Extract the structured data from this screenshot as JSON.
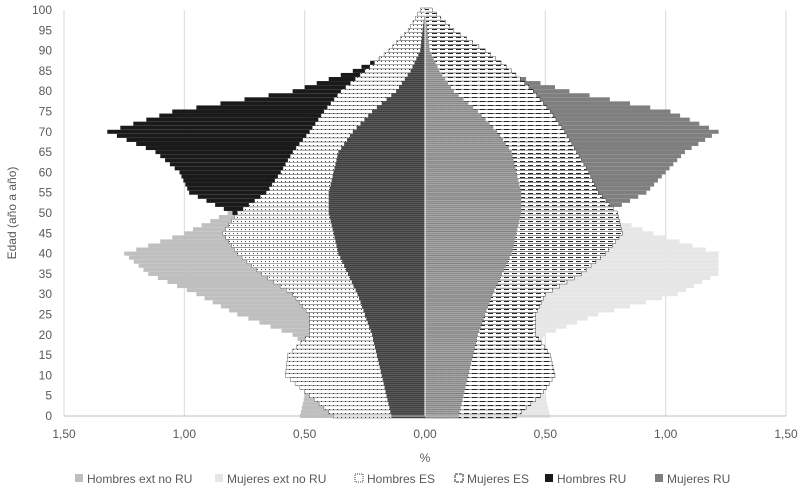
{
  "chart_data": {
    "type": "bar",
    "orientation": "horizontal-population-pyramid",
    "xlabel": "%",
    "ylabel": "Edad (año a año)",
    "xlim": [
      -1.5,
      1.5
    ],
    "ylim": [
      0,
      100
    ],
    "x_ticks": [
      {
        "value": -1.5,
        "label": "1,50"
      },
      {
        "value": -1.0,
        "label": "1,00"
      },
      {
        "value": -0.5,
        "label": "0,50"
      },
      {
        "value": 0.0,
        "label": "0,00"
      },
      {
        "value": 0.5,
        "label": "0,50"
      },
      {
        "value": 1.0,
        "label": "1,00"
      },
      {
        "value": 1.5,
        "label": "1,50"
      }
    ],
    "y_ticks": [
      {
        "value": 0,
        "label": "0"
      },
      {
        "value": 5,
        "label": "5"
      },
      {
        "value": 10,
        "label": "10"
      },
      {
        "value": 15,
        "label": "15"
      },
      {
        "value": 20,
        "label": "20"
      },
      {
        "value": 25,
        "label": "25"
      },
      {
        "value": 30,
        "label": "30"
      },
      {
        "value": 35,
        "label": "35"
      },
      {
        "value": 40,
        "label": "40"
      },
      {
        "value": 45,
        "label": "45"
      },
      {
        "value": 50,
        "label": "50"
      },
      {
        "value": 55,
        "label": "55"
      },
      {
        "value": 60,
        "label": "60"
      },
      {
        "value": 65,
        "label": "65"
      },
      {
        "value": 70,
        "label": "70"
      },
      {
        "value": 75,
        "label": "75"
      },
      {
        "value": 80,
        "label": "80"
      },
      {
        "value": 85,
        "label": "85"
      },
      {
        "value": 90,
        "label": "90"
      },
      {
        "value": 95,
        "label": "95"
      },
      {
        "value": 100,
        "label": "100"
      }
    ],
    "grid": {
      "vertical": true,
      "horizontal": false
    },
    "legend_position": "bottom",
    "age_key_points": [
      0,
      5,
      10,
      15,
      20,
      25,
      30,
      35,
      40,
      45,
      50,
      55,
      60,
      65,
      70,
      75,
      80,
      85,
      90,
      95,
      100
    ],
    "series": [
      {
        "name": "Hombres ext no RU",
        "side": "left",
        "color": "#bfbfbf",
        "pattern": "solid",
        "values": [
          0.52,
          0.5,
          0.47,
          0.45,
          0.55,
          0.78,
          0.95,
          1.15,
          1.25,
          1.0,
          0.82,
          0.55,
          0.42,
          0.35,
          0.28,
          0.22,
          0.15,
          0.1,
          0.06,
          0.03,
          0.01
        ]
      },
      {
        "name": "Mujeres ext no RU",
        "side": "right",
        "color": "#e6e6e6",
        "pattern": "solid",
        "values": [
          0.52,
          0.5,
          0.47,
          0.45,
          0.5,
          0.72,
          1.05,
          1.22,
          1.22,
          0.95,
          0.72,
          0.55,
          0.48,
          0.42,
          0.35,
          0.28,
          0.2,
          0.13,
          0.08,
          0.04,
          0.01
        ]
      },
      {
        "name": "Hombres ES",
        "side": "left",
        "color": "#ffffff",
        "pattern": "dotted",
        "values": [
          0.38,
          0.48,
          0.58,
          0.57,
          0.48,
          0.48,
          0.55,
          0.68,
          0.78,
          0.84,
          0.78,
          0.66,
          0.6,
          0.55,
          0.48,
          0.42,
          0.35,
          0.25,
          0.15,
          0.07,
          0.02
        ]
      },
      {
        "name": "Mujeres ES",
        "side": "right",
        "color": "#ffffff",
        "pattern": "dashed",
        "values": [
          0.38,
          0.48,
          0.54,
          0.52,
          0.46,
          0.46,
          0.5,
          0.65,
          0.75,
          0.82,
          0.8,
          0.72,
          0.68,
          0.63,
          0.58,
          0.52,
          0.45,
          0.36,
          0.25,
          0.12,
          0.03
        ]
      },
      {
        "name": "Hombres RU",
        "side": "left",
        "color": "#1a1a1a",
        "pattern": "solid",
        "values": [
          0.1,
          0.12,
          0.14,
          0.16,
          0.18,
          0.22,
          0.28,
          0.4,
          0.55,
          0.7,
          0.8,
          0.98,
          1.02,
          1.12,
          1.32,
          1.05,
          0.55,
          0.3,
          0.12,
          0.04,
          0.01
        ]
      },
      {
        "name": "Mujeres RU",
        "side": "right",
        "color": "#7f7f7f",
        "pattern": "solid",
        "values": [
          0.1,
          0.12,
          0.14,
          0.16,
          0.18,
          0.22,
          0.28,
          0.38,
          0.5,
          0.62,
          0.75,
          0.92,
          1.0,
          1.08,
          1.22,
          1.02,
          0.6,
          0.3,
          0.14,
          0.05,
          0.01
        ]
      }
    ],
    "center_overlay": {
      "left_color": "#595959",
      "right_color": "#a6a6a6",
      "values": [
        0.14,
        0.16,
        0.18,
        0.2,
        0.22,
        0.25,
        0.28,
        0.32,
        0.36,
        0.38,
        0.4,
        0.4,
        0.38,
        0.36,
        0.3,
        0.22,
        0.12,
        0.06,
        0.02,
        0.01,
        0.0
      ]
    }
  }
}
